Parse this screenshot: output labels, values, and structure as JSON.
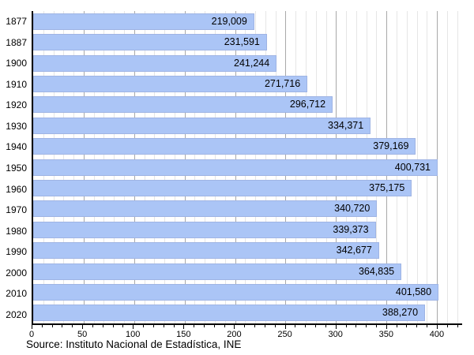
{
  "chart_data": {
    "type": "bar",
    "orientation": "horizontal",
    "title": "",
    "xlabel": "",
    "ylabel": "",
    "categories": [
      "1877",
      "1887",
      "1900",
      "1910",
      "1920",
      "1930",
      "1940",
      "1950",
      "1960",
      "1970",
      "1980",
      "1990",
      "2000",
      "2010",
      "2020"
    ],
    "values": [
      219009,
      231591,
      241244,
      271716,
      296712,
      334371,
      379169,
      400731,
      375175,
      340720,
      339373,
      342677,
      364835,
      401580,
      388270
    ],
    "value_labels": [
      "219,009",
      "231,591",
      "241,244",
      "271,716",
      "296,712",
      "334,371",
      "379,169",
      "400,731",
      "375,175",
      "340,720",
      "339,373",
      "342,677",
      "364,835",
      "401,580",
      "388,270"
    ],
    "value_scale_divisor": 1000,
    "xlim": [
      0,
      425
    ],
    "x_major_tick_values": [
      0,
      50,
      100,
      150,
      200,
      250,
      300,
      350,
      400
    ],
    "x_major_tick_labels": [
      "0",
      "50",
      "100",
      "150",
      "200",
      "250",
      "300",
      "350",
      "400"
    ],
    "x_minor_step": 10,
    "x_minor_max": 420,
    "grid": "on",
    "legend": "none",
    "bar_color": "#abc5f6",
    "bar_border_color": "#9fb4e4",
    "major_grid_color": "#a9a9a9",
    "minor_grid_color": "#e6e6e6",
    "axis_color": "#000000",
    "source": "Source: Instituto Nacional de Estadística, INE"
  }
}
